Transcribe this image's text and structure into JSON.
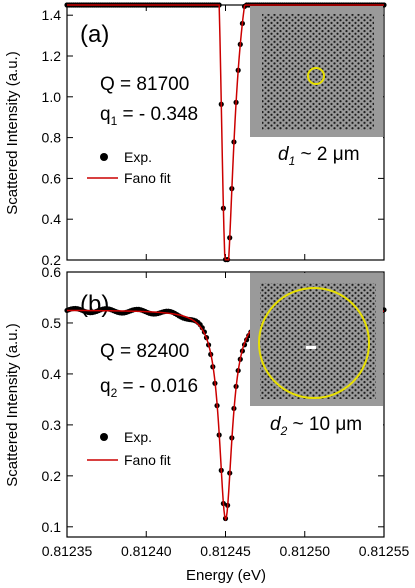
{
  "chart_data": [
    {
      "type": "scatter",
      "panel_label": "(a)",
      "ylabel": "Scattered Intensity (a.u.)",
      "xlim": [
        0.81235,
        0.81255
      ],
      "ylim": [
        0.2,
        1.45
      ],
      "yticks": [
        0.2,
        0.4,
        0.6,
        0.8,
        1.0,
        1.2,
        1.4
      ],
      "ytick_labels": [
        "0.2",
        "0.4",
        "0.6",
        "0.8",
        "1.0",
        "1.2",
        "1.4"
      ],
      "annotations": {
        "q_factor": "Q = 81700",
        "q_param": "q",
        "q_sub": "1",
        "q_value": " = - 0.348"
      },
      "legend": {
        "placement": "left",
        "exp": "Exp.",
        "fit": "Fano fit"
      },
      "inset": {
        "label_var": "d",
        "label_sub": "1",
        "label_value": " ~ 2 μm",
        "circle": "small"
      },
      "fano": {
        "x0": 0.812449,
        "gamma": 9.9e-06,
        "q": -0.348,
        "A": 2.05,
        "bg": [
          0.37,
          -200
        ]
      },
      "series": [
        {
          "kind": "points",
          "color": "#000000"
        },
        {
          "kind": "line",
          "color": "#cc0000"
        }
      ]
    },
    {
      "type": "scatter",
      "panel_label": "(b)",
      "ylabel": "Scattered Intensity (a.u.)",
      "xlabel": "Energy (eV)",
      "xlim": [
        0.81235,
        0.81255
      ],
      "ylim": [
        0.08,
        0.6
      ],
      "yticks": [
        0.1,
        0.2,
        0.3,
        0.4,
        0.5,
        0.6
      ],
      "ytick_labels": [
        "0.1",
        "0.2",
        "0.3",
        "0.4",
        "0.5",
        "0.6"
      ],
      "xticks": [
        0.81235,
        0.8124,
        0.81245,
        0.8125,
        0.81255
      ],
      "xtick_labels": [
        "0.81235",
        "0.81240",
        "0.81245",
        "0.81250",
        "0.81255"
      ],
      "annotations": {
        "q_factor": "Q = 82400",
        "q_param": "q",
        "q_sub": "2",
        "q_value": " = - 0.016"
      },
      "legend": {
        "placement": "left",
        "exp": "Exp.",
        "fit": "Fano fit"
      },
      "inset": {
        "label_var": "d",
        "label_sub": "2",
        "label_value": " ~ 10 μm",
        "circle": "large"
      },
      "fano": {
        "x0": 0.81245,
        "gamma": 9.9e-06,
        "q": -0.016,
        "A": 0.41,
        "bg": [
          0.115,
          0
        ]
      },
      "series": [
        {
          "kind": "points",
          "color": "#000000"
        },
        {
          "kind": "line",
          "color": "#cc0000"
        }
      ]
    }
  ]
}
